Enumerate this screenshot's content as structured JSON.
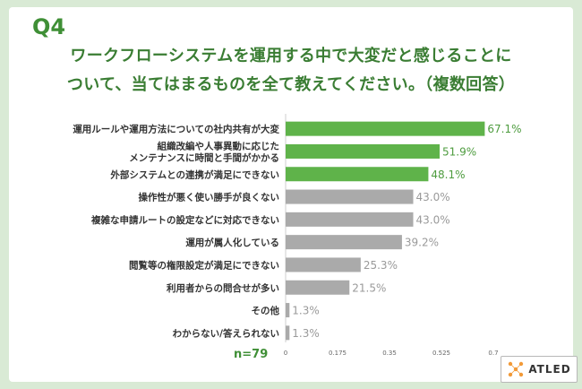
{
  "question": "Q4",
  "title_line1": "ワークフローシステムを運用する中で大変だと感じることに",
  "title_line2": "ついて、当てはまるものを全て教えてください。（複数回答）",
  "sample_size": "n=79",
  "logo_text": "ATLED",
  "colors": {
    "highlight": "#5fb34a",
    "normal": "#aaaaaa",
    "highlight_label": "#4e9c3f",
    "normal_label": "#9a9a9a",
    "title": "#3a7d33"
  },
  "chart_data": {
    "type": "bar",
    "orientation": "horizontal",
    "categories": [
      [
        "運用ルールや運用方法についての社内共有が大変"
      ],
      [
        "組織改編や人事異動に応じた",
        "メンテナンスに時間と手間がかかる"
      ],
      [
        "外部システムとの連携が満足にできない"
      ],
      [
        "操作性が悪く使い勝手が良くない"
      ],
      [
        "複雑な申請ルートの設定などに対応できない"
      ],
      [
        "運用が属人化している"
      ],
      [
        "閲覧等の権限設定が満足にできない"
      ],
      [
        "利用者からの問合せが多い"
      ],
      [
        "その他"
      ],
      [
        "わからない/答えられない"
      ]
    ],
    "values": [
      0.671,
      0.519,
      0.481,
      0.43,
      0.43,
      0.392,
      0.253,
      0.215,
      0.013,
      0.013
    ],
    "value_labels": [
      "67.1%",
      "51.9%",
      "48.1%",
      "43.0%",
      "43.0%",
      "39.2%",
      "25.3%",
      "21.5%",
      "1.3%",
      "1.3%"
    ],
    "highlighted": [
      true,
      true,
      true,
      false,
      false,
      false,
      false,
      false,
      false,
      false
    ],
    "x_ticks": [
      "0",
      "0.175",
      "0.35",
      "0.525",
      "0.7"
    ],
    "xlim": [
      0,
      0.7
    ]
  }
}
